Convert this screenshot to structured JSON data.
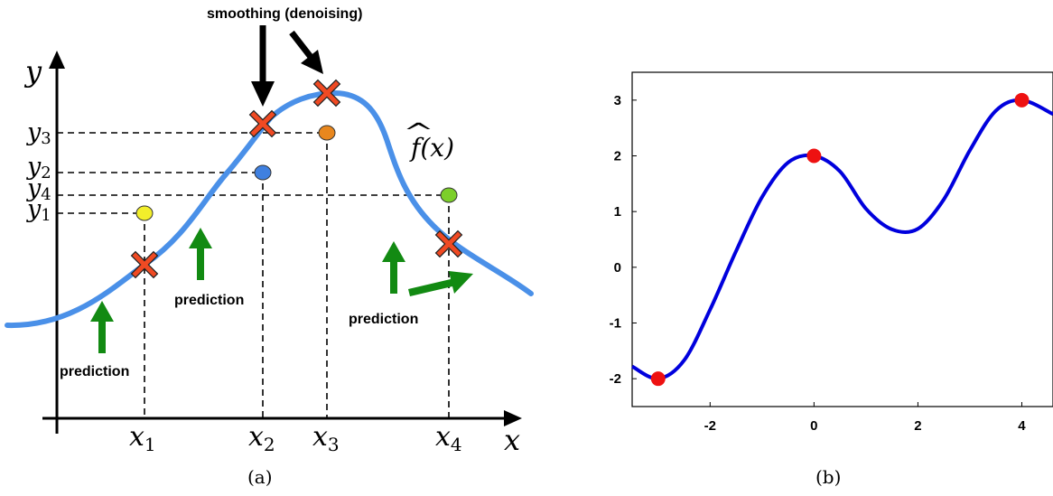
{
  "panel_a": {
    "caption": "(a)",
    "y_axis_label": "y",
    "x_axis_label": "x",
    "curve_label": "f(x)",
    "curve_label_hat": "^",
    "smoothing_label": "smoothing (denoising)",
    "prediction_labels": [
      "prediction",
      "prediction",
      "prediction"
    ],
    "x_points": [
      {
        "name": "x",
        "sub": "1"
      },
      {
        "name": "x",
        "sub": "2"
      },
      {
        "name": "x",
        "sub": "3"
      },
      {
        "name": "x",
        "sub": "4"
      }
    ],
    "y_points": [
      {
        "name": "y",
        "sub": "3"
      },
      {
        "name": "y",
        "sub": "2"
      },
      {
        "name": "y",
        "sub": "4"
      },
      {
        "name": "y",
        "sub": "1"
      }
    ],
    "observation_colors": {
      "x1": "#f2ee2b",
      "x2": "#3f80e0",
      "x3": "#e8871e",
      "x4": "#7ccf2a"
    },
    "curve_color": "#4a90e8",
    "cross_color": "#f04a23",
    "arrow_color": "#128a12"
  },
  "panel_b": {
    "caption": "(b)",
    "chart_data": {
      "type": "line",
      "x_ticks": [
        "-2",
        "0",
        "2",
        "4"
      ],
      "y_ticks": [
        "3",
        "2",
        "1",
        "0",
        "-1",
        "-2"
      ],
      "xlim": [
        -3.5,
        4.6
      ],
      "ylim": [
        -2.5,
        3.5
      ],
      "series": [
        {
          "color": "#0000dd",
          "x": [
            -3.5,
            -3.0,
            -2.5,
            -2.0,
            -1.5,
            -1.0,
            -0.5,
            0.0,
            0.5,
            1.0,
            1.5,
            2.0,
            2.5,
            3.0,
            3.5,
            4.0,
            4.6
          ],
          "y": [
            -1.78,
            -2.0,
            -1.67,
            -0.76,
            0.29,
            1.26,
            1.88,
            2.0,
            1.72,
            1.05,
            0.68,
            0.69,
            1.22,
            2.1,
            2.81,
            3.0,
            2.75
          ]
        }
      ],
      "points": [
        {
          "x": -3,
          "y": -2
        },
        {
          "x": 0,
          "y": 2
        },
        {
          "x": 4,
          "y": 3
        }
      ],
      "point_color": "#ee1111"
    }
  }
}
